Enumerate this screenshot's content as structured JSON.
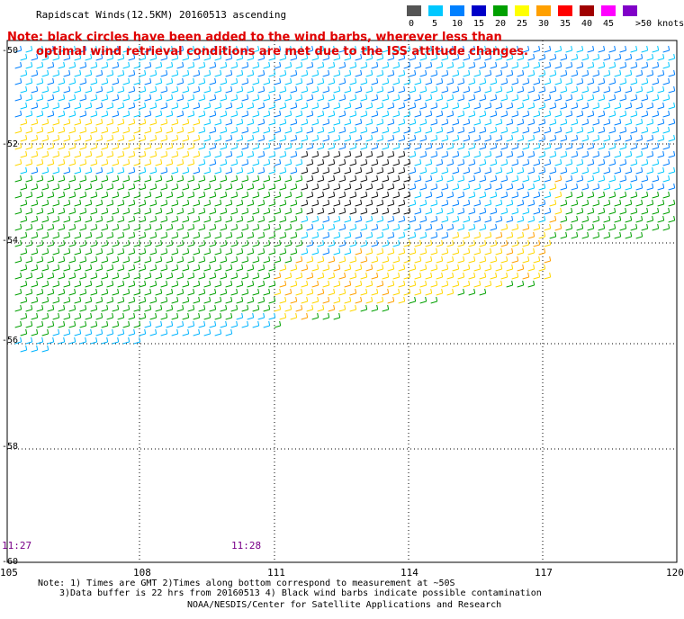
{
  "title": "Rapidscat Winds(12.5KM) 20160513 ascending",
  "note_lines": [
    "Note: black circles have been added to the wind barbs, wherever less than",
    "optimal wind retrieval conditions are met due to the ISS attitude changes."
  ],
  "colorbar": {
    "labels": [
      "0",
      "5",
      "10",
      "15",
      "20",
      "25",
      "30",
      "35",
      "40",
      "45",
      ">50 knots"
    ],
    "colors": [
      "#555555",
      "#00c8ff",
      "#0080ff",
      "#0000c8",
      "#00a000",
      "#ffff00",
      "#ffa000",
      "#ff0000",
      "#a00000",
      "#ff00ff",
      "#8000c8"
    ]
  },
  "axes": {
    "lat_labels": [
      "-50",
      "-52",
      "-54",
      "-56",
      "-58",
      "-60"
    ],
    "lon_labels": [
      "105",
      "108",
      "111",
      "114",
      "117",
      "120"
    ]
  },
  "time_labels": [
    "11:27",
    "11:28"
  ],
  "footer": [
    "Note: 1) Times are GMT 2)Times along bottom correspond to measurement at ~50S",
    "3)Data buffer is 22 hrs from 20160513 4) Black wind barbs indicate possible contamination",
    "NOAA/NESDIS/Center for Satellite Applications and Research"
  ]
}
